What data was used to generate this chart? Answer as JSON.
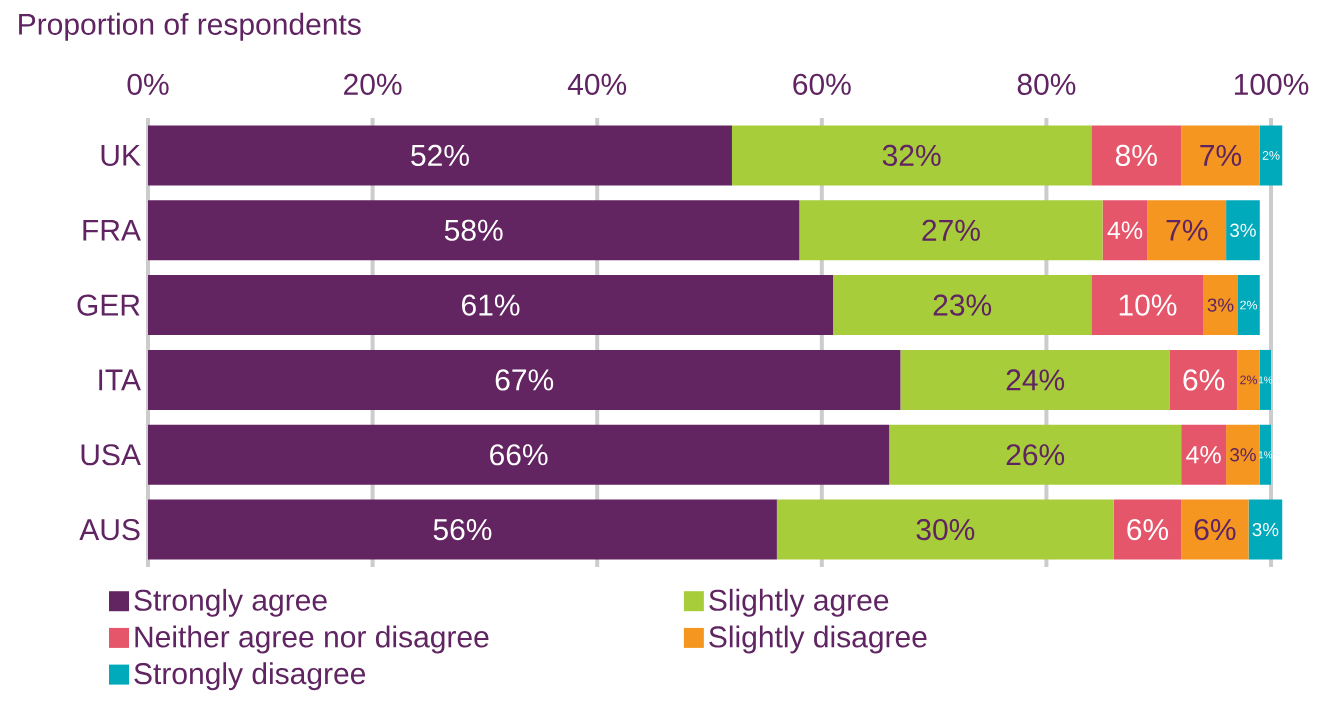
{
  "chart_data": {
    "type": "bar",
    "orientation": "horizontal",
    "stacked": true,
    "xlabel": "Proportion of respondents",
    "categories": [
      "UK",
      "FRA",
      "GER",
      "ITA",
      "USA",
      "AUS"
    ],
    "xlim": [
      0,
      101
    ],
    "xticks": [
      {
        "value": 0,
        "label": "0%"
      },
      {
        "value": 20,
        "label": "20%"
      },
      {
        "value": 40,
        "label": "40%"
      },
      {
        "value": 60,
        "label": "60%"
      },
      {
        "value": 80,
        "label": "80%"
      },
      {
        "value": 100,
        "label": "100%"
      }
    ],
    "grid": "x",
    "legend": "bottom",
    "series": [
      {
        "name": "Strongly agree",
        "color": "#632462",
        "values": [
          52,
          58,
          61,
          67,
          66,
          56
        ],
        "value_labels": [
          "52%",
          "58%",
          "61%",
          "67%",
          "66%",
          "56%"
        ]
      },
      {
        "name": "Slightly agree",
        "color": "#a8cd3a",
        "values": [
          32,
          27,
          23,
          24,
          26,
          30
        ],
        "value_labels": [
          "32%",
          "27%",
          "23%",
          "24%",
          "26%",
          "30%"
        ]
      },
      {
        "name": "Neither agree nor disagree",
        "color": "#e5566b",
        "values": [
          8,
          4,
          10,
          6,
          4,
          6
        ],
        "value_labels": [
          "8%",
          "4%",
          "10%",
          "6%",
          "4%",
          "6%"
        ]
      },
      {
        "name": "Slightly disagree",
        "color": "#f4961f",
        "values": [
          7,
          7,
          3,
          2,
          3,
          6
        ],
        "value_labels": [
          "7%",
          "7%",
          "3%",
          "2%",
          "3%",
          "6%"
        ]
      },
      {
        "name": "Strongly disagree",
        "color": "#00aabb",
        "values": [
          2,
          3,
          2,
          1,
          1,
          3
        ],
        "value_labels": [
          "2%",
          "3%",
          "2%",
          "1%",
          "1%",
          "3%"
        ]
      }
    ]
  }
}
